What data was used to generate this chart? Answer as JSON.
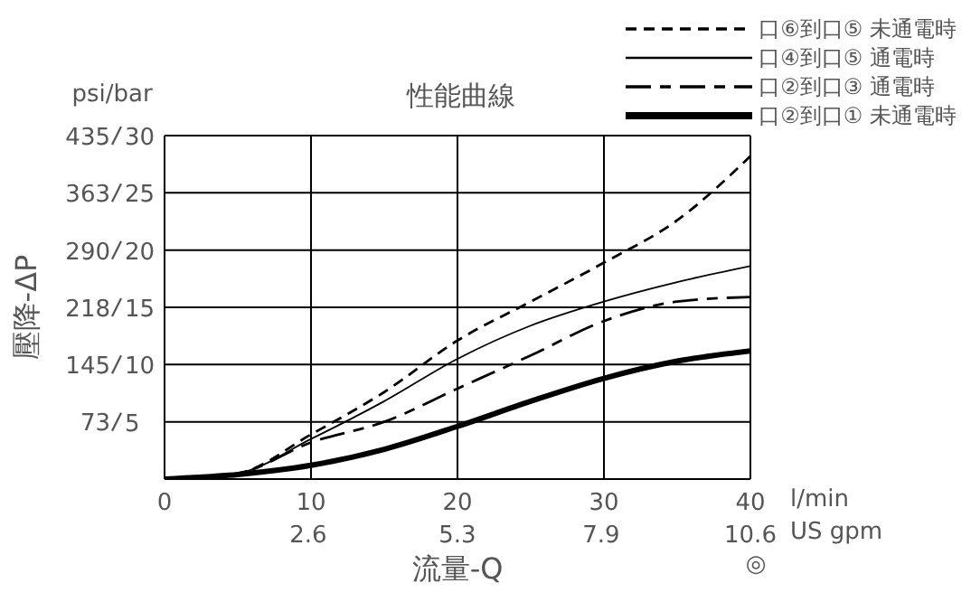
{
  "chart_data": {
    "type": "line",
    "title": "性能曲線",
    "xlabel": "流量-Q",
    "ylabel": "壓降-ΔP",
    "annotations": [
      "psi/bar",
      "l/min",
      "US gpm",
      "◎"
    ],
    "x": [
      0,
      5,
      10,
      15,
      20,
      25,
      30,
      35,
      40
    ],
    "xlim": [
      0,
      40
    ],
    "xticks": [
      0,
      10,
      20,
      30,
      40
    ],
    "x2lim": [
      0,
      10.6
    ],
    "x2ticks": [
      2.6,
      5.3,
      7.9,
      10.6
    ],
    "ylim": [
      0,
      435
    ],
    "yticks": [
      73,
      145,
      218,
      290,
      363,
      435
    ],
    "y2lim": [
      0,
      30
    ],
    "y2ticks": [
      5,
      10,
      15,
      20,
      25,
      30
    ],
    "grid": true,
    "legend": "top right",
    "marker": "none",
    "series": [
      {
        "name": "口⑥到口⑤ 未通電時",
        "color": "#000000",
        "line_style": "dashed",
        "axis": "y2",
        "values": [
          0,
          0.5,
          3.9,
          7.6,
          12.1,
          15.5,
          18.9,
          22.6,
          28.2
        ]
      },
      {
        "name": "口④到口⑤ 通電時",
        "color": "#000000",
        "line_style": "solid",
        "axis": "y2",
        "values": [
          0,
          0.5,
          3.5,
          6.8,
          10.5,
          13.4,
          15.5,
          17.2,
          18.6
        ]
      },
      {
        "name": "口②到口③ 通電時",
        "color": "#000000",
        "line_style": "dashed",
        "axis": "y2",
        "values": [
          0,
          0.5,
          3.2,
          5,
          7.9,
          10.8,
          13.8,
          15.5,
          15.9
        ]
      },
      {
        "name": "口②到口① 未通電時",
        "color": "#000000",
        "line_style": "solid",
        "axis": "y2",
        "values": [
          0,
          0.4,
          1.2,
          2.6,
          4.6,
          6.8,
          8.8,
          10.3,
          11.2
        ]
      }
    ]
  }
}
